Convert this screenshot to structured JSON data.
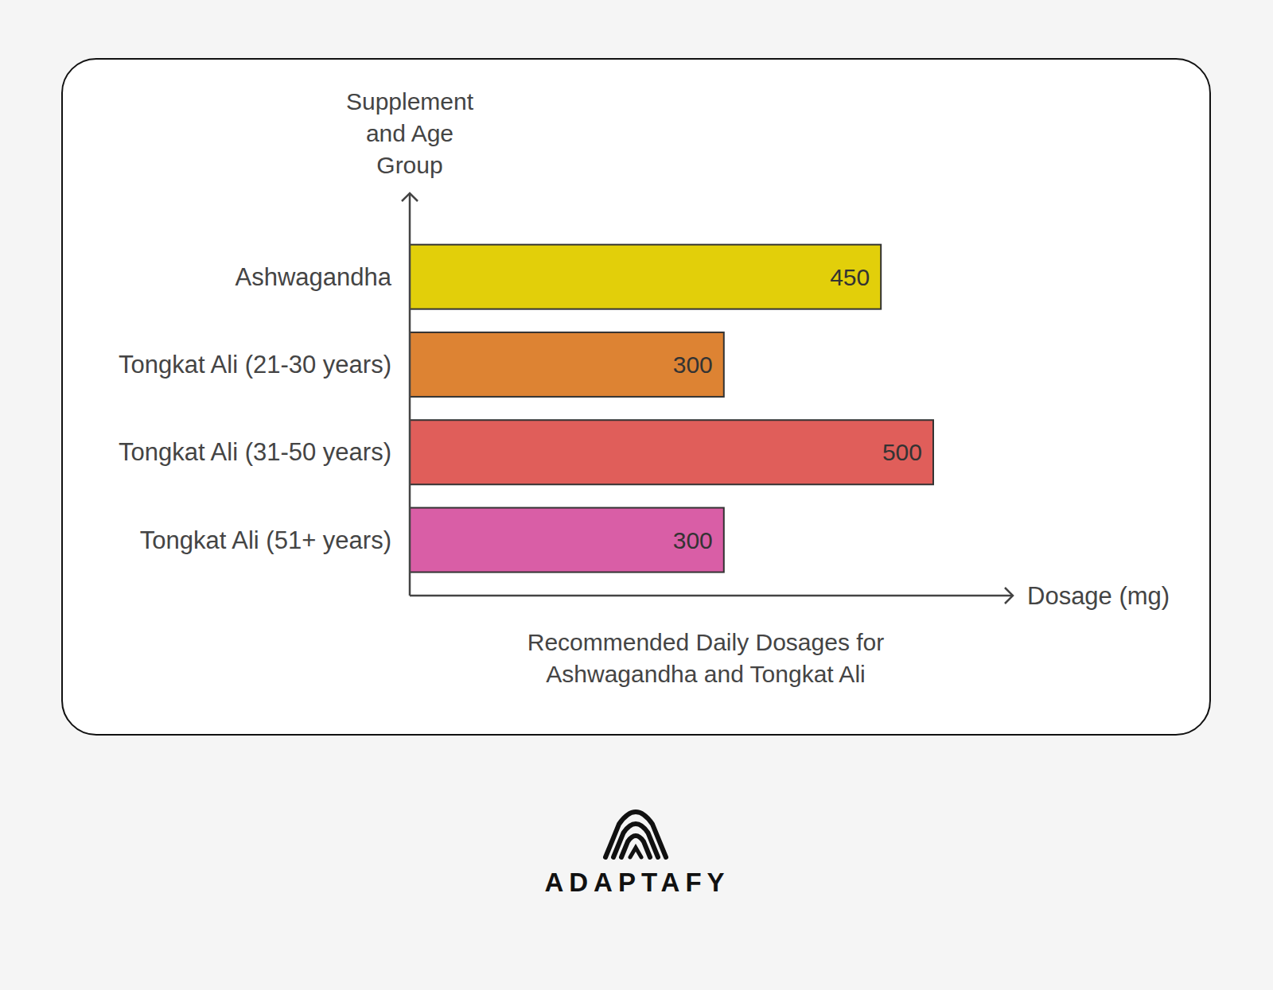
{
  "chart_data": {
    "type": "bar",
    "orientation": "horizontal",
    "title": "Recommended Daily Dosages for Ashwagandha and Tongkat Ali",
    "x_label": "Dosage (mg)",
    "y_label": "Supplement and Age Group",
    "categories": [
      "Ashwagandha",
      "Tongkat Ali (21-30 years)",
      "Tongkat Ali (31-50 years)",
      "Tongkat Ali (51+ years)"
    ],
    "values": [
      450,
      300,
      500,
      300
    ],
    "colors": [
      "#e2cf0a",
      "#dd8333",
      "#e05e5a",
      "#d95ea6"
    ],
    "xlim": [
      0,
      576
    ],
    "data_labels": true,
    "tick_labels": "y",
    "grid": false
  },
  "footer": {
    "brand": "ADAPTAFY"
  }
}
